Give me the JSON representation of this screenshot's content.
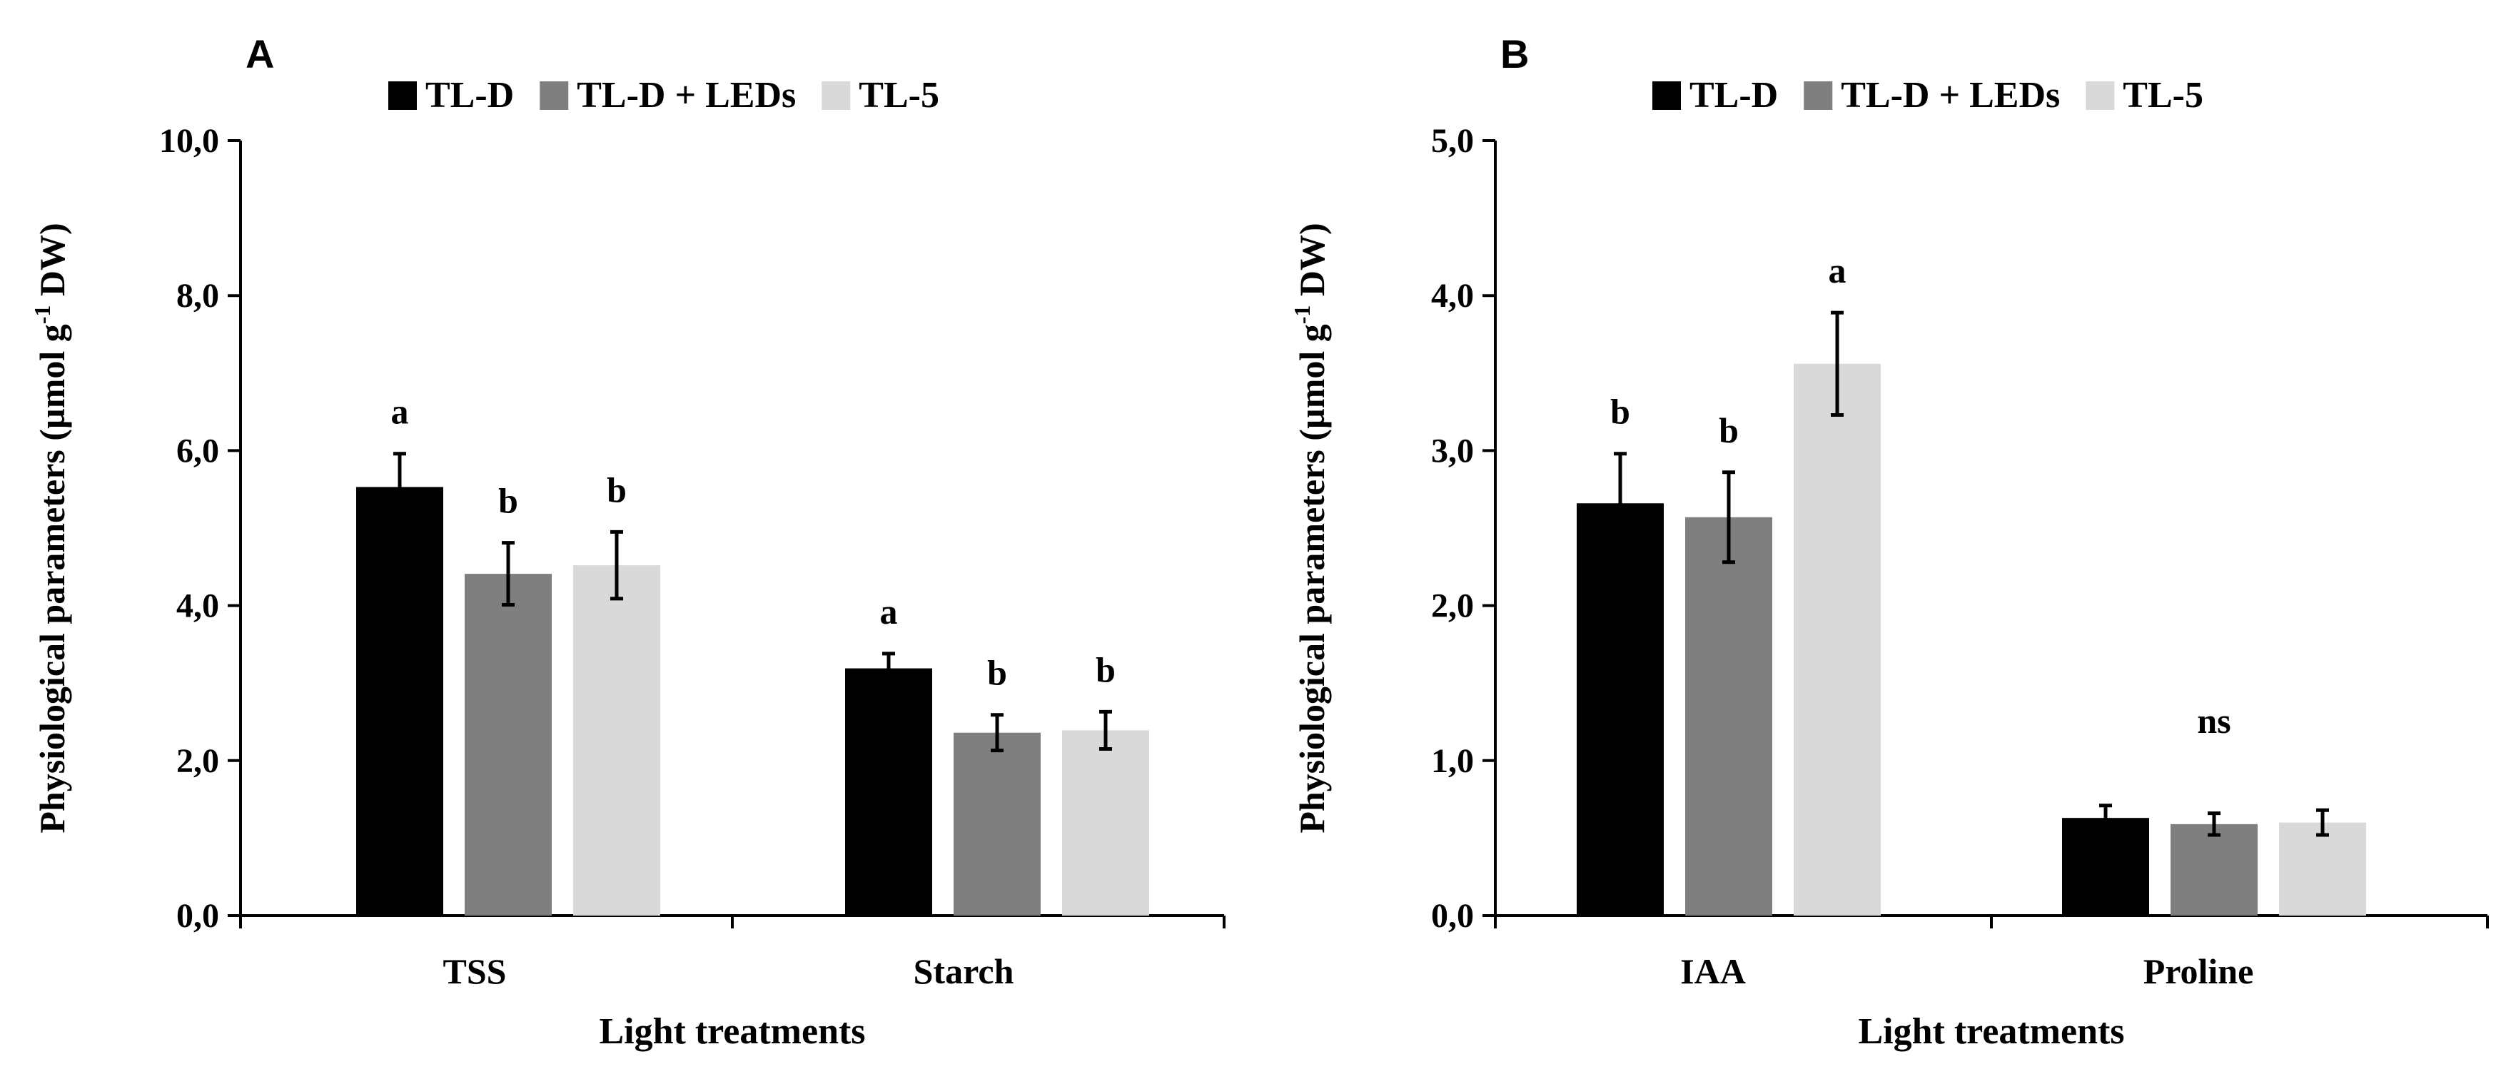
{
  "colors": {
    "TL-D": "#000000",
    "TL-D + LEDs": "#7f7f7f",
    "TL-5": "#d9d9d9",
    "axis": "#000000"
  },
  "chart_data": [
    {
      "panel": "A",
      "type": "bar",
      "title": "",
      "xlabel": "Light treatments",
      "ylabel": "Physiological parameters (µmol g-1 DW)",
      "ylim": [
        0,
        10
      ],
      "yticks": [
        "0,0",
        "2,0",
        "4,0",
        "6,0",
        "8,0",
        "10,0"
      ],
      "grid": false,
      "legend_position": "top",
      "categories": [
        "TSS",
        "Starch"
      ],
      "series": [
        {
          "name": "TL-D",
          "values": [
            5.53,
            3.19
          ],
          "errors": [
            0.43,
            0.19
          ],
          "letters": [
            "a",
            "a"
          ]
        },
        {
          "name": "TL-D + LEDs",
          "values": [
            4.41,
            2.36
          ],
          "errors": [
            0.4,
            0.23
          ],
          "letters": [
            "b",
            "b"
          ]
        },
        {
          "name": "TL-5",
          "values": [
            4.52,
            2.39
          ],
          "errors": [
            0.43,
            0.24
          ],
          "letters": [
            "b",
            "b"
          ]
        }
      ]
    },
    {
      "panel": "B",
      "type": "bar",
      "title": "",
      "xlabel": "Light treatments",
      "ylabel": "Physiological parameters (µmol g-1 DW)",
      "ylim": [
        0,
        5
      ],
      "yticks": [
        "0,0",
        "1,0",
        "2,0",
        "3,0",
        "4,0",
        "5,0"
      ],
      "grid": false,
      "legend_position": "top",
      "categories": [
        "IAA",
        "Proline"
      ],
      "group_labels": [
        "",
        "ns"
      ],
      "series": [
        {
          "name": "TL-D",
          "values": [
            2.66,
            0.63
          ],
          "errors": [
            0.32,
            0.08
          ],
          "letters": [
            "b",
            ""
          ]
        },
        {
          "name": "TL-D + LEDs",
          "values": [
            2.57,
            0.59
          ],
          "errors": [
            0.29,
            0.07
          ],
          "letters": [
            "b",
            ""
          ]
        },
        {
          "name": "TL-5",
          "values": [
            3.56,
            0.6
          ],
          "errors": [
            0.33,
            0.08
          ],
          "letters": [
            "a",
            ""
          ]
        }
      ]
    }
  ]
}
